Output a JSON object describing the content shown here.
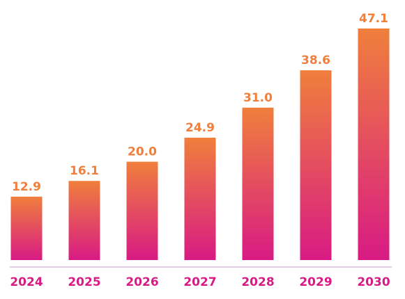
{
  "chart_data": {
    "type": "bar",
    "categories": [
      "2024",
      "2025",
      "2026",
      "2027",
      "2028",
      "2029",
      "2030"
    ],
    "values": [
      12.9,
      16.1,
      20.0,
      24.9,
      31.0,
      38.6,
      47.1
    ],
    "value_labels": [
      "12.9",
      "16.1",
      "20.0",
      "24.9",
      "31.0",
      "38.6",
      "47.1"
    ],
    "title": "",
    "xlabel": "",
    "ylabel": "",
    "ylim": [
      0,
      47.1
    ],
    "grid": false,
    "legend": "none",
    "colors": {
      "bar_top": "#f07f3c",
      "bar_bottom": "#d81b84",
      "value_label": "#f07f3c",
      "category_label": "#d81b84",
      "baseline": "#d6a6d9"
    }
  }
}
